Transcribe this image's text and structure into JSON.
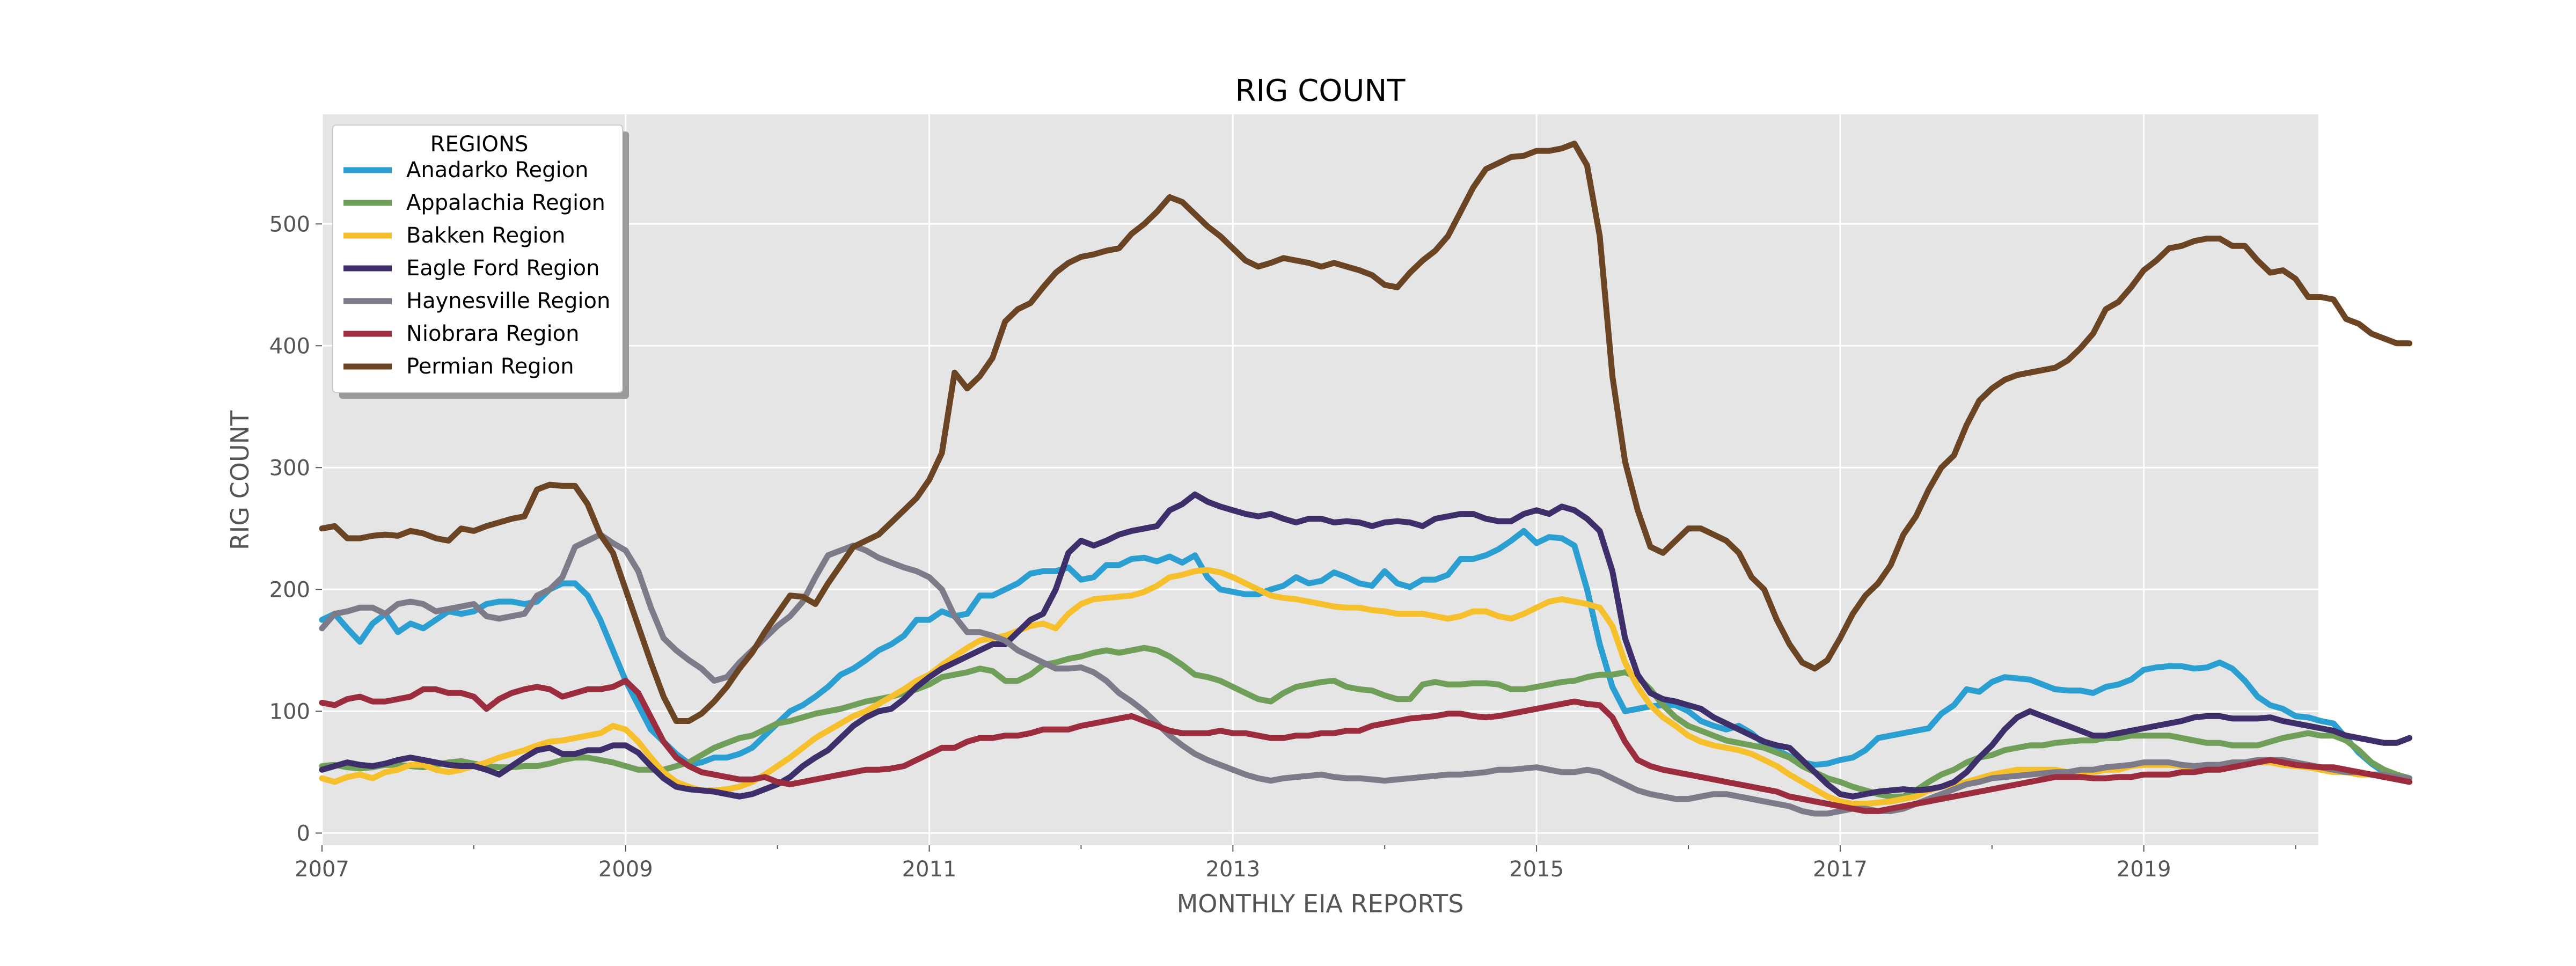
{
  "chart_data": {
    "type": "line",
    "title": "RIG COUNT",
    "xlabel": "MONTHLY EIA REPORTS",
    "ylabel": "RIG COUNT",
    "xlim": [
      2007.0,
      2020.15
    ],
    "ylim": [
      -10,
      590
    ],
    "x_ticks": [
      2007,
      2009,
      2011,
      2013,
      2015,
      2017,
      2019
    ],
    "y_ticks": [
      0,
      100,
      200,
      300,
      400,
      500
    ],
    "grid": true,
    "legend": {
      "title": "REGIONS",
      "placement": "top-left"
    },
    "x_start": 2007.0,
    "x_step": 0.08333,
    "series": [
      {
        "name": "Anadarko Region",
        "color": "#2b9fd1",
        "values": [
          175,
          180,
          168,
          157,
          172,
          180,
          165,
          172,
          168,
          175,
          182,
          180,
          182,
          188,
          190,
          190,
          188,
          190,
          200,
          205,
          205,
          195,
          175,
          150,
          125,
          105,
          85,
          75,
          65,
          57,
          58,
          62,
          62,
          65,
          70,
          80,
          90,
          100,
          105,
          112,
          120,
          130,
          135,
          142,
          150,
          155,
          162,
          175,
          175,
          182,
          178,
          180,
          195,
          195,
          200,
          205,
          213,
          215,
          215,
          218,
          208,
          210,
          220,
          220,
          225,
          226,
          223,
          227,
          222,
          228,
          210,
          200,
          198,
          196,
          196,
          200,
          203,
          210,
          205,
          207,
          214,
          210,
          205,
          203,
          215,
          205,
          202,
          208,
          208,
          212,
          225,
          225,
          228,
          233,
          240,
          248,
          238,
          243,
          242,
          236,
          200,
          155,
          120,
          100,
          102,
          104,
          105,
          105,
          100,
          92,
          88,
          85,
          88,
          82,
          73,
          68,
          63,
          58,
          56,
          57,
          60,
          62,
          68,
          78,
          80,
          82,
          84,
          86,
          98,
          105,
          118,
          116,
          124,
          128,
          127,
          126,
          122,
          118,
          117,
          117,
          115,
          120,
          122,
          126,
          134,
          136,
          137,
          137,
          135,
          136,
          140,
          135,
          125,
          112,
          105,
          102,
          96,
          95,
          92,
          90,
          78,
          66,
          57,
          50,
          48,
          45
        ]
      },
      {
        "name": "Appalachia Region",
        "color": "#6f9f58",
        "values": [
          55,
          56,
          54,
          53,
          54,
          56,
          56,
          55,
          54,
          56,
          58,
          59,
          57,
          55,
          54,
          54,
          55,
          55,
          57,
          60,
          62,
          62,
          60,
          58,
          55,
          52,
          52,
          52,
          55,
          58,
          64,
          70,
          74,
          78,
          80,
          85,
          90,
          92,
          95,
          98,
          100,
          102,
          105,
          108,
          110,
          112,
          115,
          118,
          122,
          128,
          130,
          132,
          135,
          133,
          125,
          125,
          130,
          138,
          140,
          143,
          145,
          148,
          150,
          148,
          150,
          152,
          150,
          145,
          138,
          130,
          128,
          125,
          120,
          115,
          110,
          108,
          115,
          120,
          122,
          124,
          125,
          120,
          118,
          117,
          113,
          110,
          110,
          122,
          124,
          122,
          122,
          123,
          123,
          122,
          118,
          118,
          120,
          122,
          124,
          125,
          128,
          130,
          130,
          132,
          128,
          118,
          105,
          95,
          88,
          84,
          80,
          76,
          74,
          72,
          70,
          66,
          62,
          55,
          50,
          45,
          42,
          38,
          35,
          32,
          30,
          30,
          35,
          42,
          48,
          52,
          58,
          62,
          64,
          68,
          70,
          72,
          72,
          74,
          75,
          76,
          76,
          78,
          78,
          80,
          80,
          80,
          80,
          78,
          76,
          74,
          74,
          72,
          72,
          72,
          75,
          78,
          80,
          82,
          80,
          80,
          76,
          68,
          58,
          52,
          48,
          45
        ]
      },
      {
        "name": "Bakken Region",
        "color": "#f6c02c",
        "values": [
          45,
          42,
          46,
          48,
          45,
          50,
          52,
          56,
          56,
          52,
          50,
          52,
          55,
          58,
          62,
          65,
          68,
          72,
          75,
          76,
          78,
          80,
          82,
          88,
          85,
          75,
          62,
          50,
          42,
          38,
          35,
          35,
          36,
          38,
          42,
          48,
          55,
          62,
          70,
          78,
          84,
          90,
          96,
          100,
          106,
          112,
          118,
          125,
          130,
          138,
          145,
          152,
          158,
          160,
          162,
          166,
          170,
          172,
          168,
          180,
          188,
          192,
          193,
          194,
          195,
          198,
          203,
          210,
          212,
          215,
          216,
          214,
          210,
          205,
          200,
          195,
          193,
          192,
          190,
          188,
          186,
          185,
          185,
          183,
          182,
          180,
          180,
          180,
          178,
          176,
          178,
          182,
          182,
          178,
          176,
          180,
          185,
          190,
          192,
          190,
          188,
          185,
          170,
          140,
          120,
          105,
          95,
          88,
          80,
          75,
          72,
          70,
          68,
          65,
          60,
          55,
          48,
          42,
          36,
          30,
          26,
          24,
          24,
          25,
          26,
          28,
          30,
          35,
          38,
          40,
          42,
          45,
          48,
          50,
          52,
          52,
          52,
          52,
          50,
          50,
          50,
          52,
          52,
          55,
          56,
          56,
          56,
          55,
          55,
          55,
          56,
          58,
          58,
          58,
          58,
          56,
          55,
          54,
          52,
          50,
          50,
          48,
          48,
          48,
          46,
          45
        ]
      },
      {
        "name": "Eagle Ford Region",
        "color": "#3e2f6b",
        "values": [
          52,
          55,
          58,
          56,
          55,
          57,
          60,
          62,
          60,
          58,
          56,
          55,
          55,
          52,
          48,
          55,
          62,
          68,
          70,
          65,
          65,
          68,
          68,
          72,
          72,
          66,
          55,
          45,
          38,
          36,
          35,
          34,
          32,
          30,
          32,
          36,
          40,
          46,
          55,
          62,
          68,
          78,
          88,
          95,
          100,
          102,
          110,
          120,
          128,
          135,
          140,
          145,
          150,
          155,
          155,
          165,
          175,
          180,
          200,
          230,
          240,
          236,
          240,
          245,
          248,
          250,
          252,
          265,
          270,
          278,
          272,
          268,
          265,
          262,
          260,
          262,
          258,
          255,
          258,
          258,
          255,
          256,
          255,
          252,
          255,
          256,
          255,
          252,
          258,
          260,
          262,
          262,
          258,
          256,
          256,
          262,
          265,
          262,
          268,
          265,
          258,
          248,
          215,
          160,
          130,
          115,
          110,
          108,
          105,
          102,
          95,
          90,
          85,
          80,
          75,
          72,
          70,
          60,
          50,
          40,
          32,
          30,
          32,
          34,
          35,
          36,
          35,
          36,
          38,
          42,
          50,
          62,
          72,
          85,
          95,
          100,
          96,
          92,
          88,
          84,
          80,
          80,
          82,
          84,
          86,
          88,
          90,
          92,
          95,
          96,
          96,
          94,
          94,
          94,
          95,
          92,
          90,
          88,
          86,
          84,
          80,
          78,
          76,
          74,
          74,
          78
        ]
      },
      {
        "name": "Haynesville Region",
        "color": "#7d7a8a",
        "values": [
          168,
          180,
          182,
          185,
          185,
          180,
          188,
          190,
          188,
          182,
          184,
          186,
          188,
          178,
          176,
          178,
          180,
          195,
          200,
          210,
          235,
          240,
          245,
          238,
          232,
          215,
          185,
          160,
          150,
          142,
          135,
          125,
          128,
          140,
          150,
          160,
          170,
          178,
          190,
          210,
          228,
          232,
          236,
          232,
          226,
          222,
          218,
          215,
          210,
          200,
          178,
          165,
          165,
          162,
          158,
          150,
          145,
          140,
          135,
          135,
          136,
          132,
          125,
          115,
          108,
          100,
          90,
          80,
          72,
          65,
          60,
          56,
          52,
          48,
          45,
          43,
          45,
          46,
          47,
          48,
          46,
          45,
          45,
          44,
          43,
          44,
          45,
          46,
          47,
          48,
          48,
          49,
          50,
          52,
          52,
          53,
          54,
          52,
          50,
          50,
          52,
          50,
          45,
          40,
          35,
          32,
          30,
          28,
          28,
          30,
          32,
          32,
          30,
          28,
          26,
          24,
          22,
          18,
          16,
          16,
          18,
          20,
          20,
          18,
          18,
          20,
          24,
          28,
          32,
          36,
          40,
          42,
          45,
          46,
          47,
          48,
          49,
          50,
          50,
          52,
          52,
          54,
          55,
          56,
          58,
          58,
          58,
          56,
          55,
          56,
          56,
          58,
          58,
          60,
          60,
          60,
          58,
          56,
          54,
          52,
          50,
          50,
          48,
          48,
          46,
          45
        ]
      },
      {
        "name": "Niobrara Region",
        "color": "#9b2d3f",
        "values": [
          107,
          105,
          110,
          112,
          108,
          108,
          110,
          112,
          118,
          118,
          115,
          115,
          112,
          102,
          110,
          115,
          118,
          120,
          118,
          112,
          115,
          118,
          118,
          120,
          125,
          115,
          95,
          75,
          62,
          55,
          50,
          48,
          46,
          44,
          44,
          46,
          42,
          40,
          42,
          44,
          46,
          48,
          50,
          52,
          52,
          53,
          55,
          60,
          65,
          70,
          70,
          75,
          78,
          78,
          80,
          80,
          82,
          85,
          85,
          85,
          88,
          90,
          92,
          94,
          96,
          92,
          88,
          84,
          82,
          82,
          82,
          84,
          82,
          82,
          80,
          78,
          78,
          80,
          80,
          82,
          82,
          84,
          84,
          88,
          90,
          92,
          94,
          95,
          96,
          98,
          98,
          96,
          95,
          96,
          98,
          100,
          102,
          104,
          106,
          108,
          106,
          105,
          95,
          75,
          60,
          55,
          52,
          50,
          48,
          46,
          44,
          42,
          40,
          38,
          36,
          34,
          30,
          28,
          26,
          24,
          22,
          20,
          18,
          18,
          20,
          22,
          24,
          26,
          28,
          30,
          32,
          34,
          36,
          38,
          40,
          42,
          44,
          46,
          46,
          46,
          45,
          45,
          46,
          46,
          48,
          48,
          48,
          50,
          50,
          52,
          52,
          54,
          56,
          58,
          60,
          58,
          56,
          55,
          54,
          54,
          52,
          50,
          48,
          46,
          44,
          42
        ]
      },
      {
        "name": "Permian Region",
        "color": "#6b4423",
        "values": [
          250,
          252,
          242,
          242,
          244,
          245,
          244,
          248,
          246,
          242,
          240,
          250,
          248,
          252,
          255,
          258,
          260,
          282,
          286,
          285,
          285,
          270,
          245,
          230,
          200,
          170,
          140,
          112,
          92,
          92,
          98,
          108,
          120,
          135,
          148,
          165,
          180,
          195,
          194,
          188,
          205,
          220,
          235,
          240,
          245,
          255,
          265,
          275,
          290,
          312,
          378,
          365,
          375,
          390,
          420,
          430,
          435,
          448,
          460,
          468,
          473,
          475,
          478,
          480,
          492,
          500,
          510,
          522,
          518,
          508,
          498,
          490,
          480,
          470,
          465,
          468,
          472,
          470,
          468,
          465,
          468,
          465,
          462,
          458,
          450,
          448,
          460,
          470,
          478,
          490,
          510,
          530,
          545,
          550,
          555,
          556,
          560,
          560,
          562,
          566,
          548,
          490,
          375,
          305,
          265,
          235,
          230,
          240,
          250,
          250,
          245,
          240,
          230,
          210,
          200,
          175,
          155,
          140,
          135,
          142,
          160,
          180,
          195,
          205,
          220,
          245,
          260,
          282,
          300,
          310,
          335,
          355,
          365,
          372,
          376,
          378,
          380,
          382,
          388,
          398,
          410,
          430,
          436,
          448,
          462,
          470,
          480,
          482,
          486,
          488,
          488,
          482,
          482,
          470,
          460,
          462,
          455,
          440,
          440,
          438,
          422,
          418,
          410,
          406,
          402,
          402
        ]
      }
    ]
  }
}
